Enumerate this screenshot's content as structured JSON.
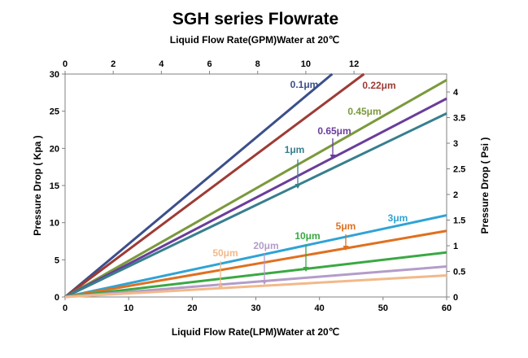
{
  "chart_data": {
    "type": "line",
    "title": "SGH series Flowrate",
    "x_bottom": {
      "label": "Liquid Flow Rate(LPM)Water  at  20℃",
      "range": [
        0,
        60
      ],
      "ticks": [
        "0",
        "10",
        "20",
        "30",
        "40",
        "50",
        "60"
      ]
    },
    "x_top": {
      "label": "Liquid Flow Rate(GPM)Water  at  20℃",
      "range": [
        0,
        15.85
      ],
      "ticks": [
        "0",
        "2",
        "4",
        "6",
        "8",
        "10",
        "12"
      ]
    },
    "y_left": {
      "label": "Pressure Drop ( Kpa )",
      "range": [
        0,
        30
      ],
      "ticks": [
        "0",
        "5",
        "10",
        "15",
        "20",
        "25",
        "30"
      ]
    },
    "y_right": {
      "label": "Pressure Drop ( Psi )",
      "range": [
        0,
        4.35
      ],
      "ticks": [
        "0",
        "0.5",
        "1",
        "1.5",
        "2",
        "2.5",
        "3",
        "3.5",
        "4"
      ]
    },
    "grid": false,
    "legend": "inline labels",
    "series": [
      {
        "name": "0.1μm",
        "color": "#3b4f8a",
        "x": [
          0,
          42
        ],
        "y": [
          0,
          30
        ]
      },
      {
        "name": "0.22μm",
        "color": "#9e3b35",
        "x": [
          0,
          47
        ],
        "y": [
          0,
          30
        ]
      },
      {
        "name": "0.45μm",
        "color": "#7a9a3c",
        "x": [
          0,
          60
        ],
        "y": [
          0,
          29.2
        ]
      },
      {
        "name": "0.65μm",
        "color": "#6a3d9a",
        "x": [
          0,
          60
        ],
        "y": [
          0,
          26.7
        ]
      },
      {
        "name": "1μm",
        "color": "#377f8e",
        "x": [
          0,
          60
        ],
        "y": [
          0,
          24.7
        ]
      },
      {
        "name": "3μm",
        "color": "#2fa3d6",
        "x": [
          0,
          60
        ],
        "y": [
          0,
          11
        ]
      },
      {
        "name": "5μm",
        "color": "#e0701f",
        "x": [
          0,
          60
        ],
        "y": [
          0,
          8.9
        ]
      },
      {
        "name": "10μm",
        "color": "#3aa843",
        "x": [
          0,
          60
        ],
        "y": [
          0,
          6
        ]
      },
      {
        "name": "20μm",
        "color": "#b39cc9",
        "x": [
          0,
          60
        ],
        "y": [
          0,
          4.1
        ]
      },
      {
        "name": "50μm",
        "color": "#f2b98a",
        "x": [
          0,
          60
        ],
        "y": [
          0,
          2.9
        ]
      }
    ]
  }
}
